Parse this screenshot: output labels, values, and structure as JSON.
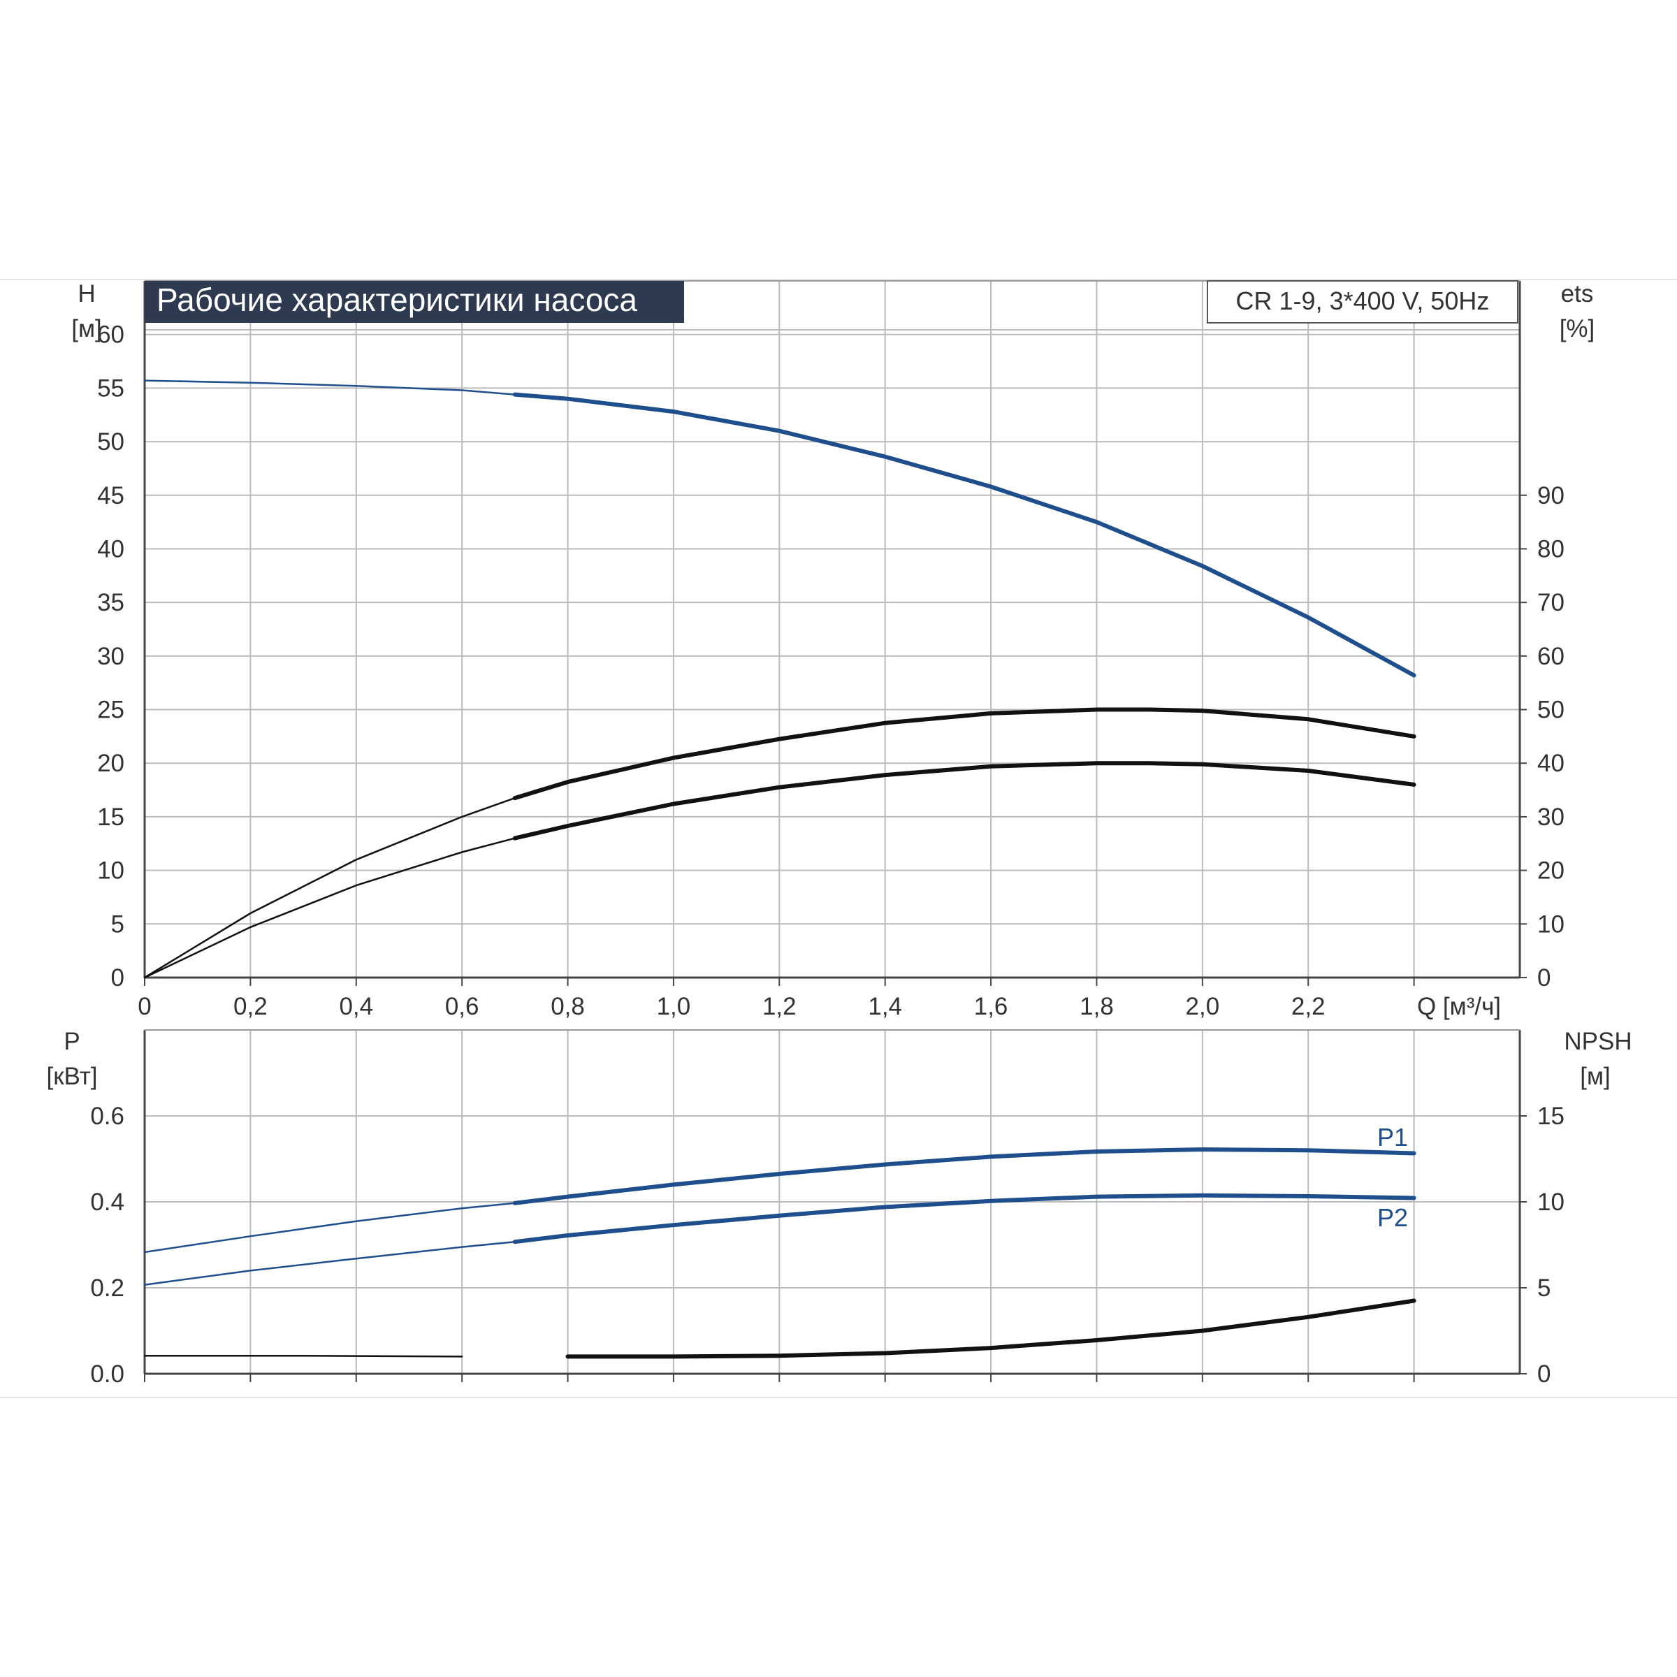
{
  "header": {
    "title": "Рабочие характеристики насоса",
    "model": "CR 1-9, 3*400 V, 50Hz"
  },
  "colors": {
    "blue": "#1f4e8c",
    "black": "#111111",
    "grid": "#bbbbbb",
    "title_bg": "#2d3a4f"
  },
  "chart_data": [
    {
      "type": "line",
      "panel": "top",
      "x_axis": {
        "label": "Q [м³/ч]",
        "range": [
          0,
          2.6
        ],
        "ticks": [
          "0",
          "0,2",
          "0,4",
          "0,6",
          "0,8",
          "1,0",
          "1,2",
          "1,4",
          "1,6",
          "1,8",
          "2,0",
          "2,2"
        ]
      },
      "y_left": {
        "label": "H",
        "unit": "[м]",
        "range": [
          0,
          65
        ],
        "ticks": [
          "0",
          "5",
          "10",
          "15",
          "20",
          "25",
          "30",
          "35",
          "40",
          "45",
          "50",
          "55",
          "60"
        ]
      },
      "y_right": {
        "label": "ets",
        "unit": "[%]",
        "range": [
          0,
          130
        ],
        "ticks": [
          "0",
          "10",
          "20",
          "30",
          "40",
          "50",
          "60",
          "70",
          "80",
          "90"
        ]
      },
      "grid": true,
      "series": [
        {
          "axis": "left",
          "color": "blue",
          "points": [
            [
              0,
              55.7
            ],
            [
              0.2,
              55.5
            ],
            [
              0.4,
              55.2
            ],
            [
              0.6,
              54.8
            ],
            [
              0.7,
              54.4
            ],
            [
              0.8,
              54.0
            ],
            [
              1.0,
              52.8
            ],
            [
              1.2,
              51.0
            ],
            [
              1.4,
              48.6
            ],
            [
              1.6,
              45.8
            ],
            [
              1.8,
              42.5
            ],
            [
              2.0,
              38.4
            ],
            [
              2.2,
              33.6
            ],
            [
              2.4,
              28.2
            ]
          ]
        },
        {
          "axis": "right",
          "color": "black",
          "points": [
            [
              0,
              0
            ],
            [
              0.2,
              12.0
            ],
            [
              0.4,
              22.0
            ],
            [
              0.6,
              30.0
            ],
            [
              0.7,
              33.5
            ],
            [
              0.8,
              36.5
            ],
            [
              1.0,
              41.0
            ],
            [
              1.2,
              44.5
            ],
            [
              1.4,
              47.5
            ],
            [
              1.6,
              49.3
            ],
            [
              1.8,
              50.0
            ],
            [
              1.9,
              50.0
            ],
            [
              2.0,
              49.8
            ],
            [
              2.2,
              48.2
            ],
            [
              2.4,
              45.0
            ]
          ]
        },
        {
          "axis": "right",
          "color": "black",
          "points": [
            [
              0,
              0
            ],
            [
              0.2,
              9.4
            ],
            [
              0.4,
              17.2
            ],
            [
              0.6,
              23.4
            ],
            [
              0.7,
              26.0
            ],
            [
              0.8,
              28.3
            ],
            [
              1.0,
              32.4
            ],
            [
              1.2,
              35.5
            ],
            [
              1.4,
              37.8
            ],
            [
              1.6,
              39.4
            ],
            [
              1.8,
              40.0
            ],
            [
              1.9,
              40.0
            ],
            [
              2.0,
              39.8
            ],
            [
              2.2,
              38.6
            ],
            [
              2.4,
              36.0
            ]
          ]
        }
      ]
    },
    {
      "type": "line",
      "panel": "bottom",
      "x_axis": {
        "range": [
          0,
          2.6
        ]
      },
      "y_left": {
        "label": "P",
        "unit": "[кВт]",
        "range": [
          0,
          0.8
        ],
        "ticks": [
          "0.0",
          "0.2",
          "0.4",
          "0.6"
        ]
      },
      "y_right": {
        "label": "NPSH",
        "unit": "[м]",
        "range": [
          0,
          20
        ],
        "ticks": [
          "0",
          "5",
          "10",
          "15"
        ]
      },
      "grid": true,
      "series": [
        {
          "name": "P1",
          "axis": "left",
          "color": "blue",
          "points": [
            [
              0,
              0.283
            ],
            [
              0.2,
              0.32
            ],
            [
              0.4,
              0.355
            ],
            [
              0.6,
              0.385
            ],
            [
              0.7,
              0.397
            ],
            [
              0.8,
              0.412
            ],
            [
              1.0,
              0.44
            ],
            [
              1.2,
              0.465
            ],
            [
              1.4,
              0.487
            ],
            [
              1.6,
              0.505
            ],
            [
              1.8,
              0.517
            ],
            [
              2.0,
              0.522
            ],
            [
              2.2,
              0.52
            ],
            [
              2.4,
              0.513
            ]
          ]
        },
        {
          "name": "P2",
          "axis": "left",
          "color": "blue",
          "points": [
            [
              0,
              0.207
            ],
            [
              0.2,
              0.24
            ],
            [
              0.4,
              0.268
            ],
            [
              0.6,
              0.295
            ],
            [
              0.7,
              0.307
            ],
            [
              0.8,
              0.322
            ],
            [
              1.0,
              0.346
            ],
            [
              1.2,
              0.368
            ],
            [
              1.4,
              0.388
            ],
            [
              1.6,
              0.402
            ],
            [
              1.8,
              0.412
            ],
            [
              2.0,
              0.415
            ],
            [
              2.2,
              0.413
            ],
            [
              2.4,
              0.409
            ]
          ]
        },
        {
          "axis": "right",
          "color": "black",
          "points": [
            [
              0,
              1.05
            ],
            [
              0.3,
              1.05
            ],
            [
              0.6,
              1.0
            ],
            [
              0.8,
              1.0
            ],
            [
              1.0,
              1.0
            ],
            [
              1.2,
              1.05
            ],
            [
              1.4,
              1.2
            ],
            [
              1.6,
              1.5
            ],
            [
              1.8,
              1.95
            ],
            [
              2.0,
              2.5
            ],
            [
              2.2,
              3.3
            ],
            [
              2.4,
              4.25
            ]
          ]
        }
      ]
    }
  ]
}
